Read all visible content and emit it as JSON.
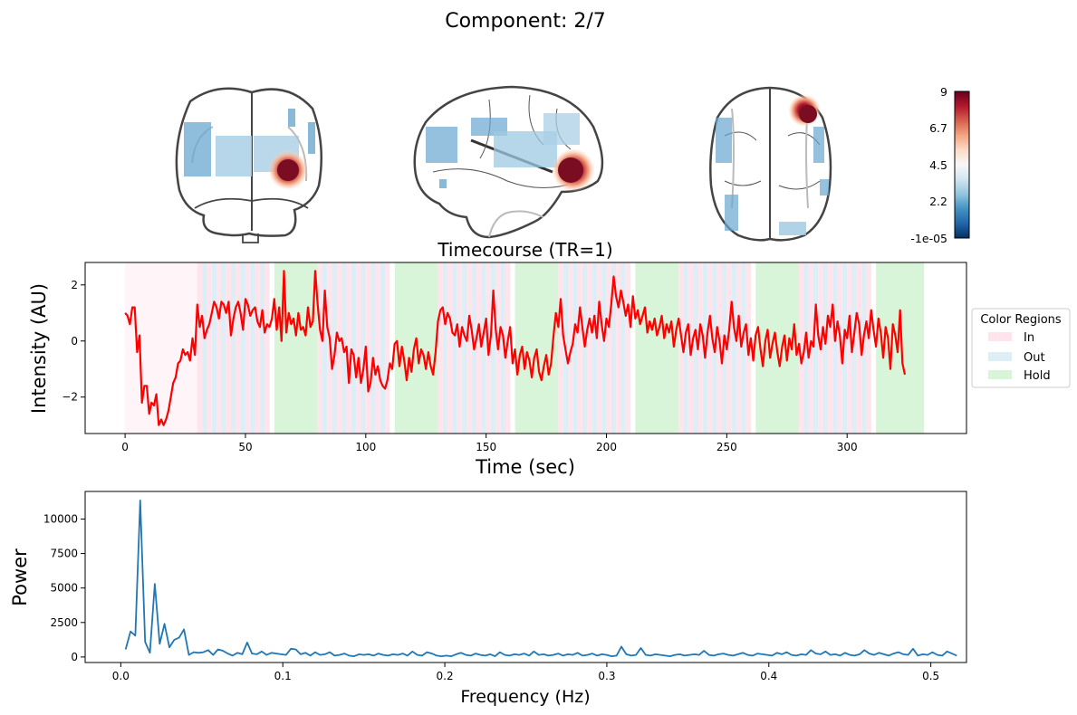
{
  "title": "Component: 2/7",
  "colorbar": {
    "ticks": [
      "9",
      "6.7",
      "4.5",
      "2.2",
      "-1e-05"
    ],
    "colormap": [
      "#053061",
      "#2166ac",
      "#4393c3",
      "#92c5de",
      "#d1e5f0",
      "#f7f7f7",
      "#fddbc7",
      "#f4a582",
      "#d6604d",
      "#b2182b",
      "#67001f"
    ]
  },
  "colors": {
    "timecourse": "#ff0000",
    "power": "#1f77b4",
    "in": "#ffe4ec",
    "out": "#ddeef7",
    "hold": "#d9f5d9",
    "pre": "#fff5f8"
  },
  "chart_data": [
    {
      "type": "line",
      "title": "Timecourse (TR=1)",
      "xlabel": "Time (sec)",
      "ylabel": "Intensity (AU)",
      "xlim": [
        -16.6,
        349.6
      ],
      "ylim": [
        -3.3,
        2.8
      ],
      "xticks": [
        0,
        50,
        100,
        150,
        200,
        250,
        300
      ],
      "yticks": [
        2,
        0,
        -2
      ],
      "ytick_labels": [
        "2",
        "0",
        "−2"
      ],
      "grid": false,
      "legend": {
        "title": "Color Regions",
        "placement": "outside right",
        "entries": [
          {
            "label": "In",
            "color": "#ffe4ec"
          },
          {
            "label": "Out",
            "color": "#ddeef7"
          },
          {
            "label": "Hold",
            "color": "#d9f5d9"
          }
        ]
      },
      "regions": [
        {
          "kind": "pre",
          "start": 0,
          "end": 30
        },
        {
          "kind": "alt",
          "start": 30,
          "end": 60
        },
        {
          "kind": "hold",
          "start": 62,
          "end": 80
        },
        {
          "kind": "alt",
          "start": 80,
          "end": 110
        },
        {
          "kind": "hold",
          "start": 112,
          "end": 130
        },
        {
          "kind": "alt",
          "start": 130,
          "end": 160
        },
        {
          "kind": "hold",
          "start": 162,
          "end": 180
        },
        {
          "kind": "alt",
          "start": 180,
          "end": 210
        },
        {
          "kind": "hold",
          "start": 212,
          "end": 230
        },
        {
          "kind": "alt",
          "start": 230,
          "end": 260
        },
        {
          "kind": "hold",
          "start": 262,
          "end": 280
        },
        {
          "kind": "alt",
          "start": 280,
          "end": 310
        },
        {
          "kind": "hold",
          "start": 312,
          "end": 332
        }
      ],
      "series": [
        {
          "x_start": 0,
          "x_step": 1,
          "values": [
            1.0,
            0.9,
            0.6,
            1.2,
            1.2,
            -0.4,
            0.2,
            -2.2,
            -1.6,
            -1.6,
            -2.6,
            -2.2,
            -2.3,
            -1.9,
            -3.0,
            -2.8,
            -3.0,
            -2.8,
            -2.5,
            -2.0,
            -1.5,
            -1.3,
            -0.8,
            -0.7,
            -0.3,
            -0.5,
            -0.4,
            -0.7,
            0.1,
            -0.5,
            1.3,
            0.5,
            0.9,
            0.1,
            0.4,
            0.6,
            1.0,
            1.4,
            1.2,
            0.8,
            1.4,
            1.3,
            1.0,
            1.4,
            0.2,
            0.8,
            1.2,
            1.4,
            1.0,
            0.4,
            1.5,
            1.3,
            0.9,
            1.1,
            1.2,
            0.7,
            0.5,
            1.1,
            0.3,
            0.6,
            0.5,
            0.8,
            1.5,
            0.4,
            1.2,
            0.0,
            2.5,
            0.3,
            1.0,
            0.6,
            0.8,
            0.2,
            1.0,
            0.4,
            0.5,
            0.2,
            1.2,
            0.5,
            0.7,
            2.5,
            1.3,
            0.4,
            0.0,
            1.8,
            0.5,
            0.1,
            -1.0,
            -0.5,
            0.3,
            0.0,
            0.1,
            -0.4,
            -0.2,
            -1.5,
            -0.3,
            -0.5,
            -1.3,
            -0.6,
            -1.5,
            -1.0,
            -0.2,
            -1.8,
            -1.5,
            -0.6,
            -1.2,
            -0.9,
            -1.4,
            -1.6,
            -1.7,
            -1.4,
            -0.8,
            -1.0,
            -0.1,
            0.0,
            -0.9,
            -0.2,
            -0.7,
            -1.4,
            -0.6,
            -1.1,
            -0.3,
            0.1,
            -0.8,
            -0.3,
            -0.5,
            -1.0,
            -0.4,
            -0.9,
            -1.2,
            -0.4,
            0.7,
            1.1,
            1.2,
            0.6,
            1.0,
            0.8,
            0.3,
            0.2,
            0.6,
            -0.2,
            0.5,
            0.2,
            0.0,
            0.9,
            0.4,
            -0.3,
            0.1,
            0.6,
            -0.2,
            0.3,
            0.8,
            -0.5,
            0.2,
            1.8,
            0.4,
            -0.3,
            0.5,
            0.2,
            -0.6,
            0.0,
            0.5,
            -0.8,
            -0.3,
            -1.2,
            -0.5,
            -0.2,
            -1.0,
            -0.4,
            -0.7,
            -1.3,
            -0.6,
            -0.3,
            -1.1,
            -1.4,
            -0.9,
            -0.5,
            -1.2,
            -0.8,
            0.2,
            1.0,
            0.5,
            1.5,
            0.2,
            -0.3,
            -0.8,
            -0.4,
            -0.1,
            0.6,
            0.3,
            1.2,
            0.5,
            -0.2,
            0.4,
            0.8,
            0.3,
            0.9,
            0.1,
            1.4,
            0.6,
            0.0,
            0.8,
            0.5,
            1.3,
            2.3,
            1.6,
            1.2,
            1.8,
            1.4,
            0.9,
            1.3,
            0.5,
            1.6,
            0.8,
            1.1,
            0.6,
            0.9,
            1.2,
            0.3,
            0.7,
            0.4,
            0.8,
            0.2,
            0.5,
            0.9,
            0.1,
            0.6,
            0.3,
            0.7,
            -0.2,
            0.4,
            0.8,
            0.2,
            -0.4,
            0.3,
            0.6,
            -0.5,
            0.1,
            0.4,
            -0.3,
            0.6,
            0.2,
            -0.6,
            0.3,
            0.9,
            0.1,
            -0.4,
            0.5,
            0.0,
            -0.8,
            0.2,
            -0.3,
            0.4,
            1.4,
            0.5,
            0.0,
            0.9,
            -0.2,
            0.3,
            0.6,
            -0.5,
            0.1,
            -0.7,
            0.2,
            0.5,
            -0.3,
            -0.9,
            0.0,
            0.4,
            -0.6,
            -0.1,
            0.3,
            -0.4,
            -0.9,
            -0.2,
            0.2,
            -0.7,
            0.1,
            -0.3,
            0.6,
            -0.5,
            -0.1,
            -0.8,
            -0.4,
            0.3,
            -0.6,
            0.0,
            -0.2,
            1.3,
            0.2,
            -0.3,
            0.5,
            -0.1,
            0.9,
            0.5,
            1.3,
            0.0,
            0.7,
            0.2,
            -0.8,
            0.4,
            0.1,
            0.9,
            -0.4,
            0.3,
            1.0,
            0.6,
            -0.5,
            0.2,
            0.7,
            0.1,
            1.1,
            0.4,
            -0.2,
            0.8,
            0.3,
            -0.6,
            0.5,
            0.1,
            -1.0,
            0.6,
            0.2,
            -0.4,
            1.1,
            -0.8,
            -1.2
          ]
        }
      ]
    },
    {
      "type": "line",
      "xlabel": "Frequency (Hz)",
      "ylabel": "Power",
      "xlim": [
        -0.022,
        0.522
      ],
      "ylim": [
        -400,
        12000
      ],
      "xticks": [
        0.0,
        0.1,
        0.2,
        0.3,
        0.4,
        0.5
      ],
      "xtick_labels": [
        "0.0",
        "0.1",
        "0.2",
        "0.3",
        "0.4",
        "0.5"
      ],
      "yticks": [
        0,
        2500,
        5000,
        7500,
        10000
      ],
      "grid": false,
      "series": [
        {
          "x_start": 0.003,
          "x_step": 0.003,
          "values": [
            550,
            1850,
            1550,
            11350,
            1100,
            300,
            5300,
            950,
            2400,
            700,
            1250,
            1400,
            2000,
            150,
            350,
            300,
            350,
            500,
            150,
            550,
            450,
            250,
            100,
            300,
            200,
            1050,
            250,
            200,
            400,
            150,
            300,
            250,
            200,
            150,
            600,
            550,
            200,
            300,
            100,
            350,
            150,
            200,
            350,
            100,
            150,
            250,
            100,
            50,
            200,
            150,
            200,
            100,
            250,
            150,
            100,
            200,
            150,
            250,
            100,
            400,
            150,
            100,
            350,
            250,
            100,
            50,
            100,
            50,
            200,
            300,
            150,
            100,
            250,
            150,
            100,
            200,
            50,
            350,
            150,
            100,
            200,
            150,
            250,
            100,
            400,
            150,
            200,
            100,
            150,
            250,
            100,
            200,
            150,
            300,
            100,
            150,
            250,
            100,
            200,
            150,
            50,
            100,
            750,
            200,
            100,
            150,
            650,
            150,
            100,
            200,
            150,
            100,
            50,
            150,
            200,
            100,
            150,
            200,
            150,
            450,
            150,
            100,
            200,
            250,
            150,
            100,
            200,
            300,
            150,
            100,
            250,
            200,
            150,
            100,
            300,
            200,
            350,
            150,
            100,
            200,
            150,
            500,
            250,
            200,
            400,
            150,
            200,
            100,
            300,
            150,
            100,
            200,
            500,
            250,
            150,
            300,
            200,
            100,
            250,
            350,
            200,
            150,
            600,
            100,
            200,
            150,
            350,
            150,
            100,
            400,
            250,
            100
          ]
        }
      ]
    }
  ]
}
